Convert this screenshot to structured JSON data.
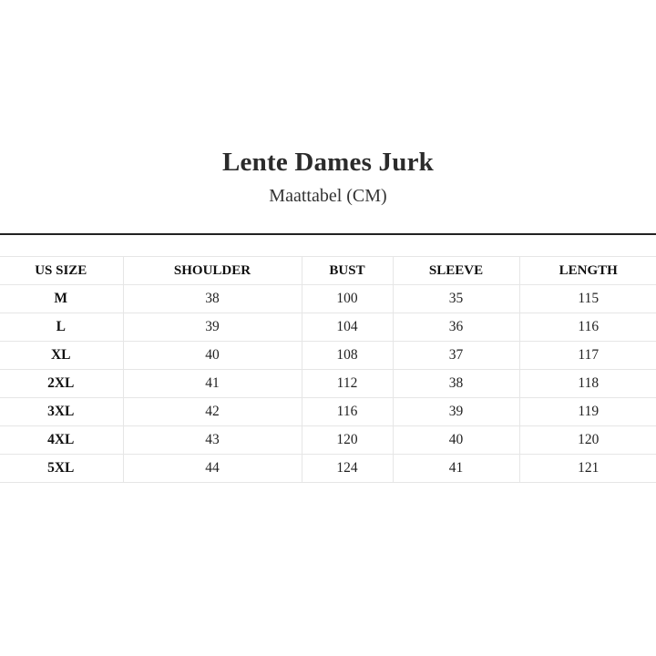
{
  "title": "Lente Dames Jurk",
  "subtitle": "Maattabel (CM)",
  "table": {
    "headers": [
      "US SIZE",
      "SHOULDER",
      "BUST",
      "SLEEVE",
      "LENGTH"
    ],
    "rows": [
      [
        "M",
        "38",
        "100",
        "35",
        "115"
      ],
      [
        "L",
        "39",
        "104",
        "36",
        "116"
      ],
      [
        "XL",
        "40",
        "108",
        "37",
        "117"
      ],
      [
        "2XL",
        "41",
        "112",
        "38",
        "118"
      ],
      [
        "3XL",
        "42",
        "116",
        "39",
        "119"
      ],
      [
        "4XL",
        "43",
        "120",
        "40",
        "120"
      ],
      [
        "5XL",
        "44",
        "124",
        "41",
        "121"
      ]
    ]
  }
}
